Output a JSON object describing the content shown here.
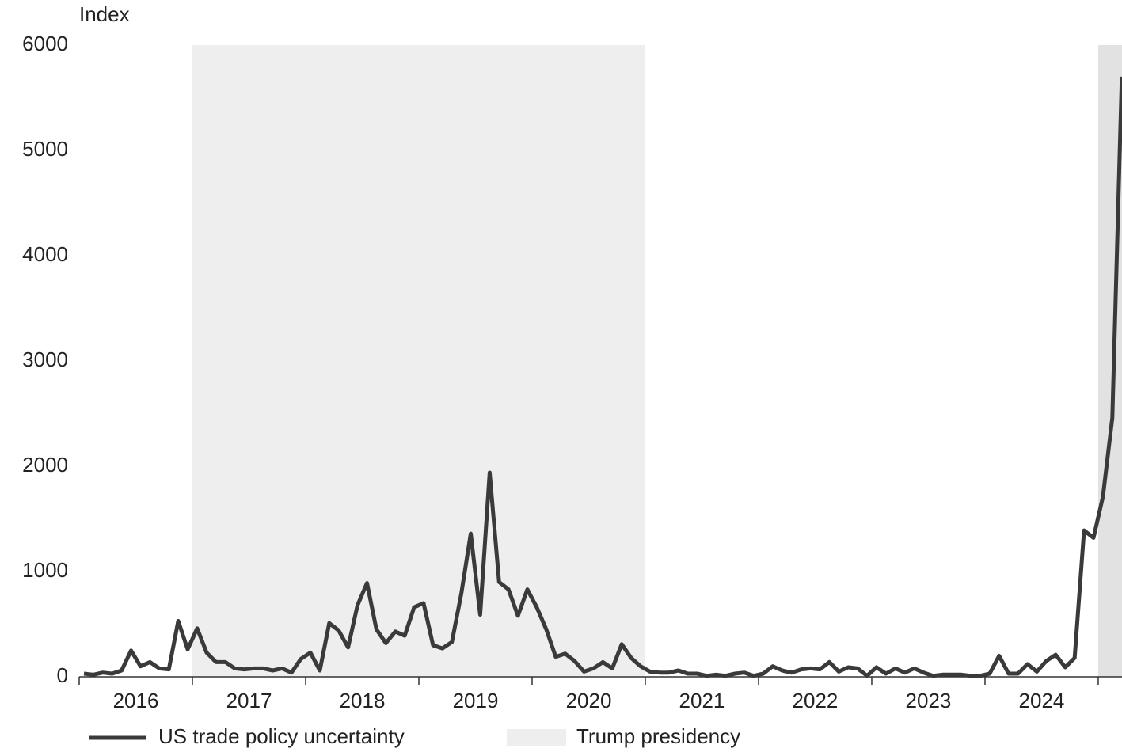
{
  "chart_data": {
    "type": "line",
    "y_label": "Index",
    "ylim": [
      0,
      6000
    ],
    "yticks": [
      0,
      1000,
      2000,
      3000,
      4000,
      5000,
      6000
    ],
    "xlim": [
      2016,
      2025.21
    ],
    "xticks": [
      2016,
      2017,
      2018,
      2019,
      2020,
      2021,
      2022,
      2023,
      2024,
      2025
    ],
    "grid": false,
    "spans_label": "Trump presidency",
    "spans": [
      {
        "start": 2017,
        "end": 2021,
        "color": "#eeeeee"
      },
      {
        "start": 2025,
        "end": 2025.21,
        "color": "#e2e2e2"
      }
    ],
    "series": [
      {
        "name": "US trade policy uncertainty",
        "color": "#3a3a3a",
        "values": [
          30,
          20,
          40,
          30,
          60,
          250,
          100,
          140,
          80,
          70,
          530,
          260,
          460,
          230,
          140,
          140,
          80,
          70,
          80,
          80,
          60,
          80,
          40,
          170,
          230,
          60,
          510,
          440,
          280,
          680,
          890,
          450,
          320,
          430,
          390,
          660,
          700,
          300,
          270,
          330,
          790,
          1360,
          590,
          1940,
          900,
          830,
          580,
          830,
          660,
          450,
          190,
          220,
          150,
          50,
          80,
          140,
          80,
          310,
          180,
          100,
          50,
          40,
          40,
          60,
          30,
          30,
          10,
          20,
          10,
          30,
          40,
          10,
          30,
          100,
          60,
          40,
          70,
          80,
          70,
          140,
          50,
          90,
          80,
          10,
          90,
          30,
          80,
          40,
          80,
          40,
          10,
          20,
          20,
          20,
          10,
          10,
          30,
          200,
          30,
          30,
          120,
          50,
          150,
          210,
          90,
          180,
          1390,
          1320,
          1710,
          2460,
          5700
        ]
      }
    ]
  }
}
